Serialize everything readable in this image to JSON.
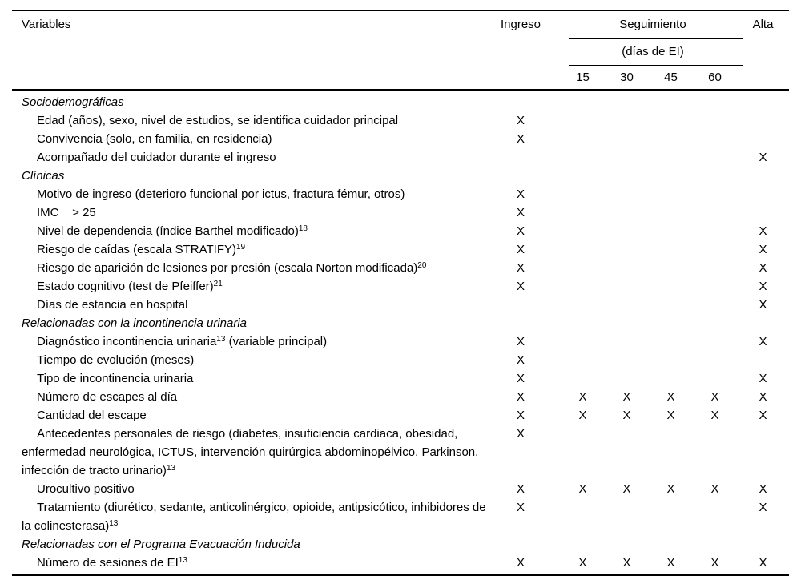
{
  "table": {
    "mark_glyph": "X",
    "columns_order": [
      "ingreso",
      "d15",
      "d30",
      "d45",
      "d60",
      "alta"
    ],
    "header": {
      "variables_label": "Variables",
      "col_ingreso": "Ingreso",
      "col_seguimiento": "Seguimiento",
      "col_seguimiento_sub": "(días de EI)",
      "col_days": [
        "15",
        "30",
        "45",
        "60"
      ],
      "col_alta": "Alta"
    },
    "rows": [
      {
        "type": "section",
        "parts": [
          {
            "text": "Sociodemográficas"
          }
        ],
        "marks": []
      },
      {
        "type": "item",
        "parts": [
          {
            "text": "Edad (años), sexo, nivel de estudios, se identifica cuidador principal"
          }
        ],
        "marks": [
          "ingreso"
        ]
      },
      {
        "type": "item",
        "parts": [
          {
            "text": "Convivencia (solo, en familia, en residencia)"
          }
        ],
        "marks": [
          "ingreso"
        ]
      },
      {
        "type": "item",
        "parts": [
          {
            "text": "Acompañado del cuidador durante el ingreso"
          }
        ],
        "marks": [
          "alta"
        ]
      },
      {
        "type": "section",
        "parts": [
          {
            "text": "Clínicas"
          }
        ],
        "marks": []
      },
      {
        "type": "item",
        "parts": [
          {
            "text": "Motivo de ingreso (deterioro funcional por ictus, fractura fémur, otros)"
          }
        ],
        "marks": [
          "ingreso"
        ]
      },
      {
        "type": "item",
        "parts": [
          {
            "text": "IMC    > 25"
          }
        ],
        "marks": [
          "ingreso"
        ]
      },
      {
        "type": "item",
        "parts": [
          {
            "text": "Nivel de dependencia (índice Barthel modificado)"
          },
          {
            "sup": "18"
          }
        ],
        "marks": [
          "ingreso",
          "alta"
        ]
      },
      {
        "type": "item",
        "parts": [
          {
            "text": "Riesgo de caídas (escala STRATIFY)"
          },
          {
            "sup": "19"
          }
        ],
        "marks": [
          "ingreso",
          "alta"
        ]
      },
      {
        "type": "item",
        "parts": [
          {
            "text": "Riesgo de aparición de lesiones por presión (escala Norton modificada)"
          },
          {
            "sup": "20"
          }
        ],
        "marks": [
          "ingreso",
          "alta"
        ]
      },
      {
        "type": "item",
        "parts": [
          {
            "text": "Estado cognitivo (test de Pfeiffer)"
          },
          {
            "sup": "21"
          }
        ],
        "marks": [
          "ingreso",
          "alta"
        ]
      },
      {
        "type": "item",
        "parts": [
          {
            "text": "Días de estancia en hospital"
          }
        ],
        "marks": [
          "alta"
        ]
      },
      {
        "type": "section",
        "parts": [
          {
            "text": "Relacionadas con la incontinencia urinaria"
          }
        ],
        "marks": []
      },
      {
        "type": "item",
        "parts": [
          {
            "text": "Diagnóstico incontinencia urinaria"
          },
          {
            "sup": "13"
          },
          {
            "text": " (variable principal)"
          }
        ],
        "marks": [
          "ingreso",
          "alta"
        ]
      },
      {
        "type": "item",
        "parts": [
          {
            "text": "Tiempo de evolución (meses)"
          }
        ],
        "marks": [
          "ingreso"
        ]
      },
      {
        "type": "item",
        "parts": [
          {
            "text": "Tipo de incontinencia urinaria"
          }
        ],
        "marks": [
          "ingreso",
          "alta"
        ]
      },
      {
        "type": "item",
        "parts": [
          {
            "text": "Número de escapes al día"
          }
        ],
        "marks": [
          "ingreso",
          "d15",
          "d30",
          "d45",
          "d60",
          "alta"
        ]
      },
      {
        "type": "item",
        "parts": [
          {
            "text": "Cantidad del escape"
          }
        ],
        "marks": [
          "ingreso",
          "d15",
          "d30",
          "d45",
          "d60",
          "alta"
        ]
      },
      {
        "type": "item",
        "parts": [
          {
            "text": "Antecedentes personales de riesgo (diabetes, insuficiencia cardiaca, obesidad, enfermedad neurológica, ICTUS, intervención quirúrgica abdominopélvico, Parkinson, infección de tracto urinario)"
          },
          {
            "sup": "13"
          }
        ],
        "marks": [
          "ingreso"
        ]
      },
      {
        "type": "item",
        "parts": [
          {
            "text": "Urocultivo positivo"
          }
        ],
        "marks": [
          "ingreso",
          "d15",
          "d30",
          "d45",
          "d60",
          "alta"
        ]
      },
      {
        "type": "item",
        "parts": [
          {
            "text": "Tratamiento (diurético, sedante, anticolinérgico, opioide, antipsicótico, inhibidores de la colinesterasa)"
          },
          {
            "sup": "13"
          }
        ],
        "marks": [
          "ingreso",
          "alta"
        ]
      },
      {
        "type": "section",
        "parts": [
          {
            "text": "Relacionadas con el Programa Evacuación Inducida"
          }
        ],
        "marks": []
      },
      {
        "type": "item",
        "parts": [
          {
            "text": "Número de sesiones de EI"
          },
          {
            "sup": "13"
          }
        ],
        "marks": [
          "ingreso",
          "d15",
          "d30",
          "d45",
          "d60",
          "alta"
        ]
      }
    ]
  }
}
